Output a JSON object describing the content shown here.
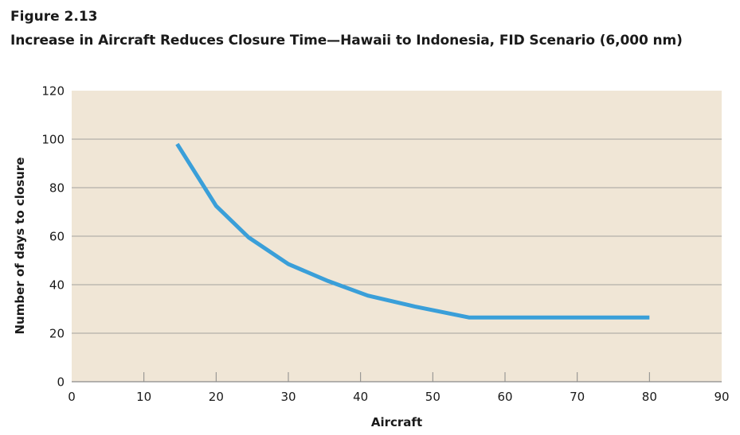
{
  "figure": {
    "label": "Figure 2.13",
    "title": "Increase in Aircraft Reduces Closure Time—Hawaii to Indonesia, FID Scenario (6,000 nm)"
  },
  "colors": {
    "plot_background": "#f0e6d6",
    "line": "#3a9fd9",
    "grid": "#8a8a8a"
  },
  "chart_data": {
    "type": "line",
    "title": "Increase in Aircraft Reduces Closure Time—Hawaii to Indonesia, FID Scenario (6,000 nm)",
    "xlabel": "Aircraft",
    "ylabel": "Number of days to closure",
    "xlim": [
      0,
      90
    ],
    "ylim": [
      0,
      120
    ],
    "xticks": [
      0,
      10,
      20,
      30,
      40,
      50,
      60,
      70,
      80,
      90
    ],
    "yticks": [
      0,
      20,
      40,
      60,
      80,
      100,
      120
    ],
    "grid": "horizontal",
    "legend": "none",
    "series": [
      {
        "x": [
          14.6,
          20,
          24.5,
          30,
          35.5,
          41,
          47.5,
          55,
          60,
          70,
          80
        ],
        "y": [
          98,
          72.5,
          59.5,
          48.5,
          41.5,
          35.5,
          31,
          26.5,
          26.5,
          26.5,
          26.5
        ]
      }
    ]
  }
}
